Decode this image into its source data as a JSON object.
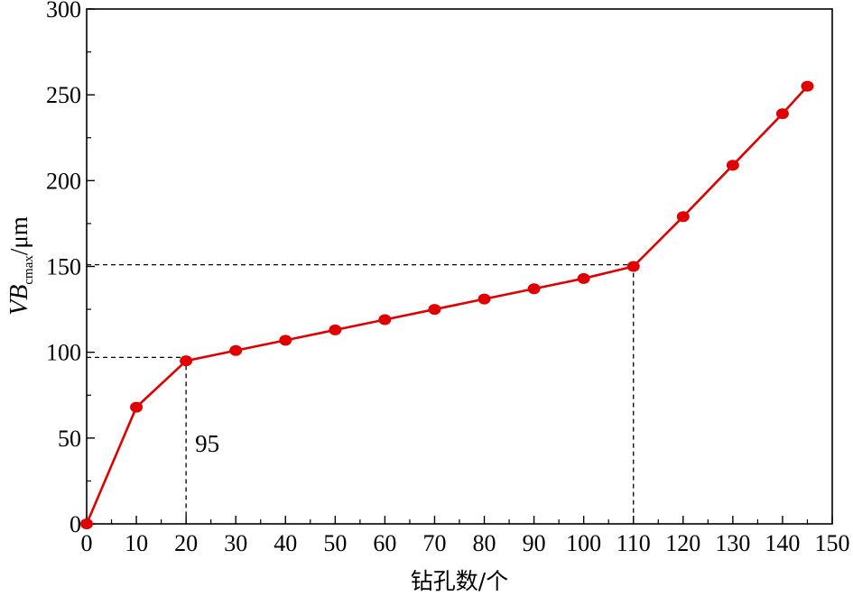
{
  "chart_data": {
    "type": "line",
    "xlabel": "钻孔数/个",
    "ylabel": {
      "main": "VB",
      "subscript": "cmax",
      "unit": "/μm"
    },
    "xlim": [
      0,
      150
    ],
    "ylim": [
      0,
      300
    ],
    "xticks": [
      0,
      10,
      20,
      30,
      40,
      50,
      60,
      70,
      80,
      90,
      100,
      110,
      120,
      130,
      140,
      150
    ],
    "yticks": [
      0,
      50,
      100,
      150,
      200,
      250,
      300
    ],
    "series": [
      {
        "color": "#e00000",
        "x": [
          0,
          10,
          20,
          30,
          40,
          50,
          60,
          70,
          80,
          90,
          100,
          110,
          120,
          130,
          140,
          145
        ],
        "y": [
          0,
          68,
          95,
          101,
          107,
          113,
          119,
          125,
          131,
          137,
          143,
          150,
          179,
          209,
          239,
          255
        ]
      }
    ],
    "reference_lines": [
      {
        "x": 20,
        "y": 97
      },
      {
        "x": 110,
        "y": 151
      }
    ],
    "annotations": [
      {
        "text": "95",
        "x": 20,
        "y": 42
      }
    ],
    "grid": false,
    "legend": "none"
  }
}
